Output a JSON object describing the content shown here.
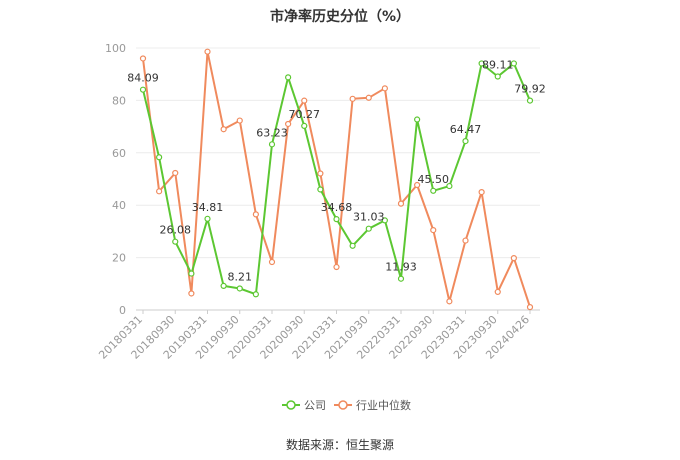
{
  "source_text": "数据来源：恒生聚源",
  "chart_data": {
    "type": "line",
    "title": "市净率历史分位（%）",
    "xlabel": "",
    "ylabel": "",
    "ylim": [
      0,
      100
    ],
    "yticks": [
      0,
      20,
      40,
      60,
      80,
      100
    ],
    "grid": true,
    "legend_position": "bottom",
    "x": [
      "20180331",
      "20180630",
      "20180930",
      "20181231",
      "20190331",
      "20190630",
      "20190930",
      "20191231",
      "20200331",
      "20200630",
      "20200930",
      "20201231",
      "20210331",
      "20210630",
      "20210930",
      "20211231",
      "20220331",
      "20220630",
      "20220930",
      "20221231",
      "20230331",
      "20230630",
      "20230930",
      "20231231",
      "20240426"
    ],
    "x_tick_labels": [
      "20180331",
      "20180930",
      "20190331",
      "20190930",
      "20200331",
      "20200930",
      "20210331",
      "20210930",
      "20220331",
      "20220930",
      "20230331",
      "20230930",
      "20240426"
    ],
    "series": [
      {
        "name": "公司",
        "color": "#5cc732",
        "values": [
          84.09,
          58.3,
          26.08,
          13.9,
          34.81,
          9.2,
          8.21,
          6.0,
          63.23,
          88.8,
          70.27,
          46.0,
          34.68,
          24.5,
          31.03,
          34.2,
          11.93,
          72.7,
          45.5,
          47.3,
          64.47,
          94.1,
          89.11,
          94.1,
          79.92
        ]
      },
      {
        "name": "行业中位数",
        "color": "#f08a5d",
        "values": [
          96.0,
          45.3,
          52.3,
          6.3,
          98.6,
          69.0,
          72.3,
          36.5,
          18.3,
          71.0,
          79.9,
          52.1,
          16.4,
          80.6,
          81.0,
          84.6,
          40.6,
          47.7,
          30.5,
          3.3,
          26.5,
          45.0,
          6.9,
          19.8,
          1.1
        ]
      }
    ],
    "data_labels": [
      {
        "series": 0,
        "index": 0,
        "text": "84.09"
      },
      {
        "series": 0,
        "index": 2,
        "text": "26.08"
      },
      {
        "series": 0,
        "index": 4,
        "text": "34.81"
      },
      {
        "series": 0,
        "index": 6,
        "text": "8.21"
      },
      {
        "series": 0,
        "index": 8,
        "text": "63.23"
      },
      {
        "series": 0,
        "index": 10,
        "text": "70.27"
      },
      {
        "series": 0,
        "index": 12,
        "text": "34.68"
      },
      {
        "series": 0,
        "index": 14,
        "text": "31.03"
      },
      {
        "series": 0,
        "index": 16,
        "text": "11.93"
      },
      {
        "series": 0,
        "index": 18,
        "text": "45.50"
      },
      {
        "series": 0,
        "index": 20,
        "text": "64.47"
      },
      {
        "series": 0,
        "index": 22,
        "text": "89.11"
      },
      {
        "series": 0,
        "index": 24,
        "text": "79.92"
      }
    ]
  }
}
